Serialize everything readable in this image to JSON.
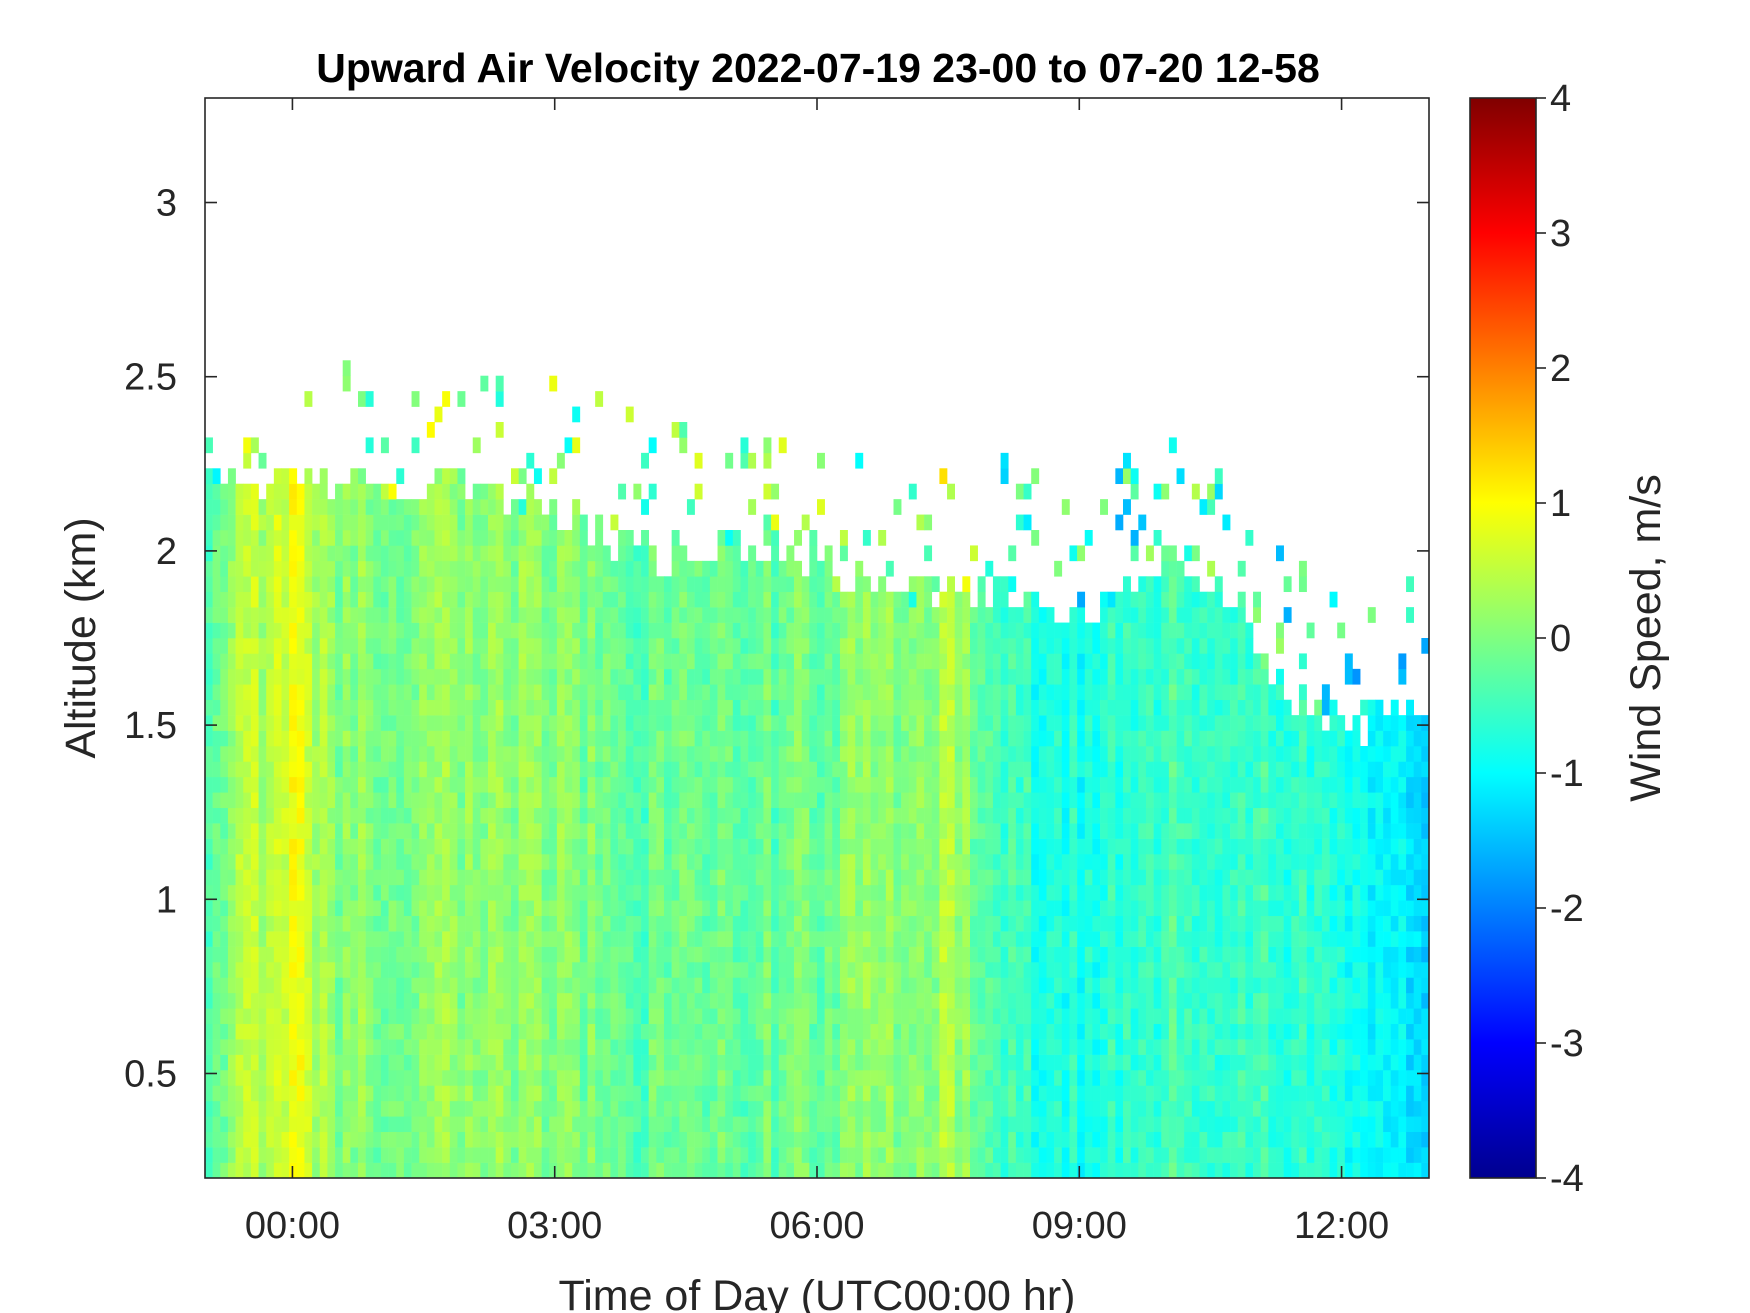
{
  "chart_data": {
    "type": "heatmap",
    "title": "Upward Air Velocity 2022-07-19 23-00 to 07-20 12-58",
    "xlabel": "Time of Day (UTC00:00 hr)",
    "ylabel": "Altitude (km)",
    "colorbar_label": "Wind Speed, m/s",
    "colormap": "jet",
    "x_start": "2022-07-19 23:00",
    "x_end": "2022-07-20 12:58",
    "x_range_hours": [
      -1,
      13
    ],
    "x_ticks": [
      {
        "value": 0,
        "label": "00:00"
      },
      {
        "value": 3,
        "label": "03:00"
      },
      {
        "value": 6,
        "label": "06:00"
      },
      {
        "value": 9,
        "label": "09:00"
      },
      {
        "value": 12,
        "label": "12:00"
      }
    ],
    "ylim": [
      0.2,
      3.3
    ],
    "y_ticks": [
      {
        "value": 0.5,
        "label": "0.5"
      },
      {
        "value": 1,
        "label": "1"
      },
      {
        "value": 1.5,
        "label": "1.5"
      },
      {
        "value": 2,
        "label": "2"
      },
      {
        "value": 2.5,
        "label": "2.5"
      },
      {
        "value": 3,
        "label": "3"
      }
    ],
    "clim": [
      -4,
      4
    ],
    "c_ticks": [
      {
        "value": -4,
        "label": "-4"
      },
      {
        "value": -3,
        "label": "-3"
      },
      {
        "value": -2,
        "label": "-2"
      },
      {
        "value": -1,
        "label": "-1"
      },
      {
        "value": 0,
        "label": "0"
      },
      {
        "value": 1,
        "label": "1"
      },
      {
        "value": 2,
        "label": "2"
      },
      {
        "value": 3,
        "label": "3"
      },
      {
        "value": 4,
        "label": "4"
      }
    ],
    "data_top_altitude_km": {
      "time_hr": [
        -1.0,
        -0.5,
        0.0,
        1.0,
        2.0,
        3.0,
        4.0,
        5.0,
        6.0,
        7.0,
        8.0,
        9.0,
        9.5,
        10.0,
        10.5,
        11.0,
        11.5,
        12.0,
        12.5,
        13.0
      ],
      "altitude": [
        2.2,
        2.2,
        2.2,
        2.2,
        2.18,
        2.1,
        2.0,
        2.0,
        1.95,
        1.9,
        1.9,
        1.8,
        1.9,
        1.95,
        1.9,
        1.75,
        1.55,
        1.5,
        1.5,
        1.55
      ]
    },
    "mean_velocity_by_time": {
      "time_hr": [
        -1.0,
        -0.5,
        0.0,
        0.5,
        1.0,
        2.0,
        3.0,
        4.0,
        5.0,
        6.0,
        7.0,
        7.5,
        8.0,
        8.5,
        9.0,
        10.0,
        11.0,
        12.0,
        12.5,
        13.0
      ],
      "velocity": [
        -0.2,
        0.3,
        0.8,
        0.1,
        0.0,
        0.1,
        0.0,
        -0.2,
        -0.2,
        -0.1,
        0.1,
        0.3,
        -0.3,
        -0.7,
        -0.8,
        -0.5,
        -0.6,
        -0.8,
        -1.0,
        -1.2
      ]
    }
  }
}
